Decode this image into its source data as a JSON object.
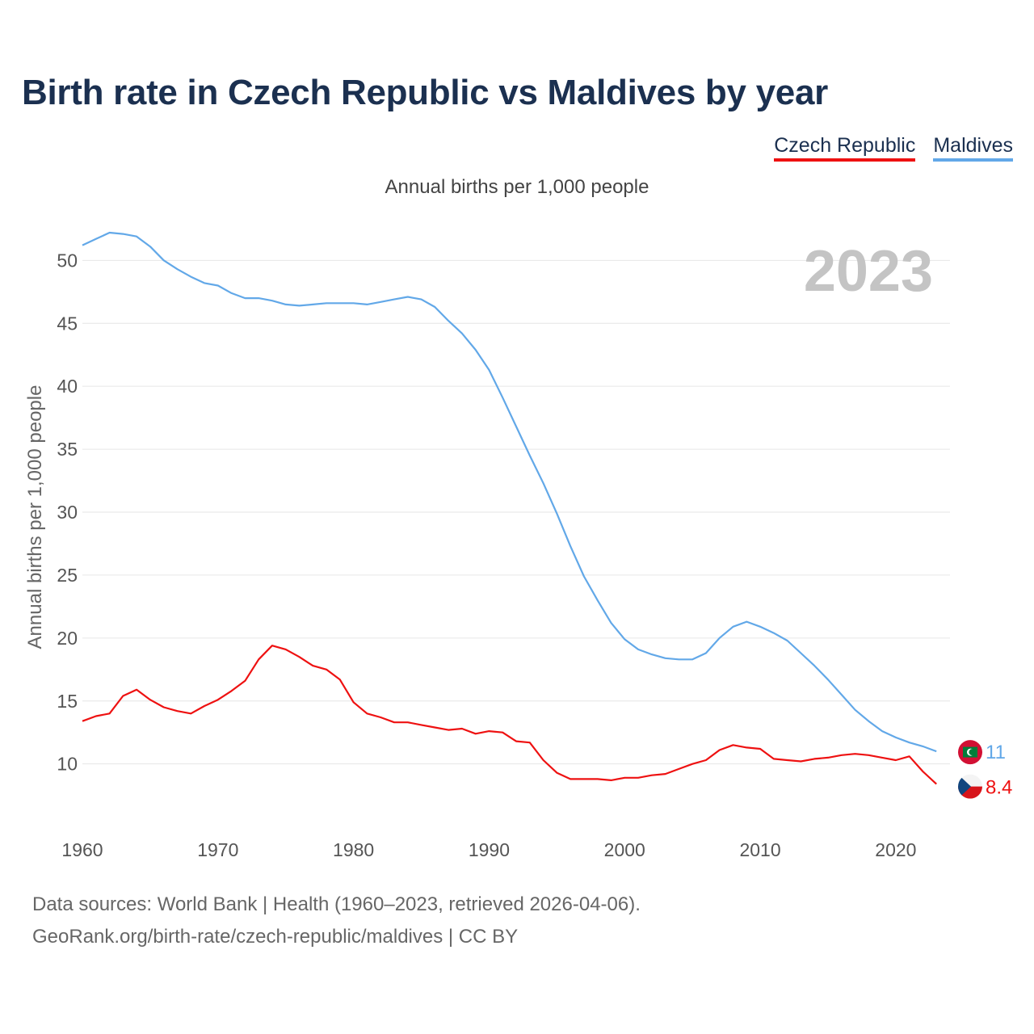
{
  "title": "Birth rate in Czech Republic vs Maldives by year",
  "legend": [
    {
      "label": "Czech Republic",
      "color": "#ee1111"
    },
    {
      "label": "Maldives",
      "color": "#62a8e8"
    }
  ],
  "subtitle": "Annual births per 1,000 people",
  "footer": {
    "source": "Data sources: World Bank | Health (1960–2023, retrieved 2026-04-06).",
    "link": "GeoRank.org/birth-rate/czech-republic/maldives | CC BY"
  },
  "chart_data": {
    "type": "line",
    "title": "Birth rate in Czech Republic vs Maldives by year",
    "xlabel": "",
    "ylabel": "Annual births per 1,000 people",
    "xlim": [
      1960,
      2024
    ],
    "ylim": [
      6,
      54
    ],
    "yticks": [
      10,
      15,
      20,
      25,
      30,
      35,
      40,
      45,
      50
    ],
    "xticks": [
      1960,
      1970,
      1980,
      1990,
      2000,
      2010,
      2020
    ],
    "grid": true,
    "year_label": "2023",
    "x": [
      1960,
      1961,
      1962,
      1963,
      1964,
      1965,
      1966,
      1967,
      1968,
      1969,
      1970,
      1971,
      1972,
      1973,
      1974,
      1975,
      1976,
      1977,
      1978,
      1979,
      1980,
      1981,
      1982,
      1983,
      1984,
      1985,
      1986,
      1987,
      1988,
      1989,
      1990,
      1991,
      1992,
      1993,
      1994,
      1995,
      1996,
      1997,
      1998,
      1999,
      2000,
      2001,
      2002,
      2003,
      2004,
      2005,
      2006,
      2007,
      2008,
      2009,
      2010,
      2011,
      2012,
      2013,
      2014,
      2015,
      2016,
      2017,
      2018,
      2019,
      2020,
      2021,
      2022,
      2023
    ],
    "series": [
      {
        "name": "Czech Republic",
        "color": "#ee1111",
        "end_label": "8.4",
        "values": [
          13.4,
          13.8,
          14.0,
          15.4,
          15.9,
          15.1,
          14.5,
          14.2,
          14.0,
          14.6,
          15.1,
          15.8,
          16.6,
          18.3,
          19.4,
          19.1,
          18.5,
          17.8,
          17.5,
          16.7,
          14.9,
          14.0,
          13.7,
          13.3,
          13.3,
          13.1,
          12.9,
          12.7,
          12.8,
          12.4,
          12.6,
          12.5,
          11.8,
          11.7,
          10.3,
          9.3,
          8.8,
          8.8,
          8.8,
          8.7,
          8.9,
          8.9,
          9.1,
          9.2,
          9.6,
          10.0,
          10.3,
          11.1,
          11.5,
          11.3,
          11.2,
          10.4,
          10.3,
          10.2,
          10.4,
          10.5,
          10.7,
          10.8,
          10.7,
          10.5,
          10.3,
          10.6,
          9.4,
          8.4
        ]
      },
      {
        "name": "Maldives",
        "color": "#62a8e8",
        "end_label": "11",
        "values": [
          51.2,
          51.7,
          52.2,
          52.1,
          51.9,
          51.1,
          50.0,
          49.3,
          48.7,
          48.2,
          48.0,
          47.4,
          47.0,
          47.0,
          46.8,
          46.5,
          46.4,
          46.5,
          46.6,
          46.6,
          46.6,
          46.5,
          46.7,
          46.9,
          47.1,
          46.9,
          46.3,
          45.2,
          44.2,
          42.9,
          41.3,
          39.1,
          36.8,
          34.5,
          32.3,
          29.9,
          27.3,
          24.9,
          23.0,
          21.2,
          19.9,
          19.1,
          18.7,
          18.4,
          18.3,
          18.3,
          18.8,
          20.0,
          20.9,
          21.3,
          20.9,
          20.4,
          19.8,
          18.8,
          17.8,
          16.7,
          15.5,
          14.3,
          13.4,
          12.6,
          12.1,
          11.7,
          11.4,
          11.0
        ]
      }
    ]
  }
}
